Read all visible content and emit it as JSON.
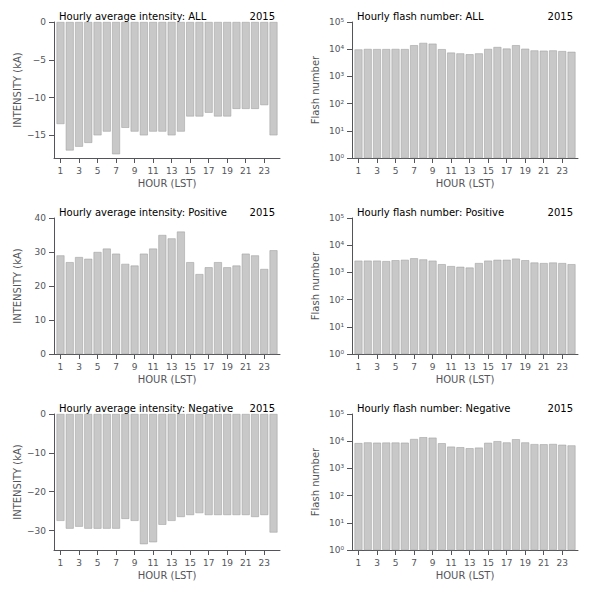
{
  "chart_data": [
    {
      "type": "bar",
      "title": "Hourly average intensity: ALL",
      "annotation": "2015",
      "xlabel": "HOUR (LST)",
      "ylabel": "INTENSITY (kA)",
      "x": [
        1,
        2,
        3,
        4,
        5,
        6,
        7,
        8,
        9,
        10,
        11,
        12,
        13,
        14,
        15,
        16,
        17,
        18,
        19,
        20,
        21,
        22,
        23,
        24
      ],
      "values": [
        -13.5,
        -17.0,
        -16.5,
        -16.0,
        -15.0,
        -14.5,
        -17.5,
        -14.0,
        -14.5,
        -15.0,
        -14.5,
        -14.5,
        -15.0,
        -14.5,
        -12.5,
        -12.5,
        -12.0,
        -12.5,
        -12.5,
        -11.5,
        -11.5,
        -11.5,
        -11.0,
        -15.0
      ],
      "color": "#c8c8c8",
      "xlim": [
        0.3,
        24.7
      ],
      "xticks": [
        1,
        3,
        5,
        7,
        9,
        11,
        13,
        15,
        17,
        19,
        21,
        23
      ],
      "ylim": [
        -18,
        0
      ],
      "yticks": [
        0,
        {
          "value": -5,
          "label": "−5"
        },
        {
          "value": -10,
          "label": "−10"
        },
        {
          "value": -15,
          "label": "−15"
        }
      ],
      "grid": false
    },
    {
      "type": "bar",
      "title": "Hourly flash number: ALL",
      "annotation": "2015",
      "xlabel": "HOUR (LST)",
      "ylabel": "Flash number",
      "x": [
        1,
        2,
        3,
        4,
        5,
        6,
        7,
        8,
        9,
        10,
        11,
        12,
        13,
        14,
        15,
        16,
        17,
        18,
        19,
        20,
        21,
        22,
        23,
        24
      ],
      "values": [
        9800,
        10200,
        10100,
        10100,
        10200,
        10100,
        14000,
        17000,
        16000,
        10000,
        7500,
        7000,
        6500,
        7000,
        10200,
        12000,
        10500,
        14000,
        10400,
        9000,
        8800,
        9000,
        8500,
        8000
      ],
      "color": "#c8c8c8",
      "xlim": [
        0.3,
        24.7
      ],
      "xticks": [
        1,
        3,
        5,
        7,
        9,
        11,
        13,
        15,
        17,
        19,
        21,
        23
      ],
      "ylim": [
        1,
        100000
      ],
      "yticks": [
        {
          "value": 1,
          "label": "10⁰"
        },
        {
          "value": 10,
          "label": "10¹"
        },
        {
          "value": 100,
          "label": "10²"
        },
        {
          "value": 1000,
          "label": "10³"
        },
        {
          "value": 10000,
          "label": "10⁴"
        },
        {
          "value": 100000,
          "label": "10⁵"
        }
      ],
      "log": "y",
      "grid": false
    },
    {
      "type": "bar",
      "title": "Hourly average intensity: Positive",
      "annotation": "2015",
      "xlabel": "HOUR (LST)",
      "ylabel": "INTENSITY (kA)",
      "x": [
        1,
        2,
        3,
        4,
        5,
        6,
        7,
        8,
        9,
        10,
        11,
        12,
        13,
        14,
        15,
        16,
        17,
        18,
        19,
        20,
        21,
        22,
        23,
        24
      ],
      "values": [
        29.0,
        27.0,
        28.5,
        28.0,
        30.0,
        31.0,
        29.5,
        26.5,
        26.0,
        29.5,
        31.0,
        35.0,
        34.0,
        36.0,
        27.0,
        23.5,
        25.5,
        27.0,
        25.5,
        26.0,
        29.5,
        29.0,
        25.0,
        30.5
      ],
      "color": "#c8c8c8",
      "xlim": [
        0.3,
        24.7
      ],
      "xticks": [
        1,
        3,
        5,
        7,
        9,
        11,
        13,
        15,
        17,
        19,
        21,
        23
      ],
      "ylim": [
        0,
        40
      ],
      "yticks": [
        0,
        10,
        20,
        30,
        40
      ],
      "grid": false
    },
    {
      "type": "bar",
      "title": "Hourly flash number: Positive",
      "annotation": "2015",
      "xlabel": "HOUR (LST)",
      "ylabel": "Flash number",
      "x": [
        1,
        2,
        3,
        4,
        5,
        6,
        7,
        8,
        9,
        10,
        11,
        12,
        13,
        14,
        15,
        16,
        17,
        18,
        19,
        20,
        21,
        22,
        23,
        24
      ],
      "values": [
        2700,
        2700,
        2700,
        2600,
        2800,
        2900,
        3300,
        3000,
        2700,
        2000,
        1700,
        1600,
        1500,
        2200,
        2700,
        2900,
        2900,
        3200,
        2800,
        2300,
        2200,
        2300,
        2200,
        2000
      ],
      "color": "#c8c8c8",
      "xlim": [
        0.3,
        24.7
      ],
      "xticks": [
        1,
        3,
        5,
        7,
        9,
        11,
        13,
        15,
        17,
        19,
        21,
        23
      ],
      "ylim": [
        1,
        100000
      ],
      "yticks": [
        {
          "value": 1,
          "label": "10⁰"
        },
        {
          "value": 10,
          "label": "10¹"
        },
        {
          "value": 100,
          "label": "10²"
        },
        {
          "value": 1000,
          "label": "10³"
        },
        {
          "value": 10000,
          "label": "10⁴"
        },
        {
          "value": 100000,
          "label": "10⁵"
        }
      ],
      "log": "y",
      "grid": false
    },
    {
      "type": "bar",
      "title": "Hourly average intensity: Negative",
      "annotation": "2015",
      "xlabel": "HOUR (LST)",
      "ylabel": "INTENSITY (kA)",
      "x": [
        1,
        2,
        3,
        4,
        5,
        6,
        7,
        8,
        9,
        10,
        11,
        12,
        13,
        14,
        15,
        16,
        17,
        18,
        19,
        20,
        21,
        22,
        23,
        24
      ],
      "values": [
        -27.5,
        -29.5,
        -29.0,
        -29.5,
        -29.5,
        -29.5,
        -29.5,
        -27.0,
        -27.5,
        -33.5,
        -33.0,
        -28.5,
        -27.5,
        -26.5,
        -26.0,
        -25.5,
        -26.0,
        -26.0,
        -26.0,
        -26.0,
        -26.0,
        -26.5,
        -26.0,
        -30.5
      ],
      "color": "#c8c8c8",
      "xlim": [
        0.3,
        24.7
      ],
      "xticks": [
        1,
        3,
        5,
        7,
        9,
        11,
        13,
        15,
        17,
        19,
        21,
        23
      ],
      "ylim": [
        -35,
        0
      ],
      "yticks": [
        0,
        {
          "value": -10,
          "label": "−10"
        },
        {
          "value": -20,
          "label": "−20"
        },
        {
          "value": -30,
          "label": "−30"
        }
      ],
      "grid": false
    },
    {
      "type": "bar",
      "title": "Hourly flash number: Negative",
      "annotation": "2015",
      "xlabel": "HOUR (LST)",
      "ylabel": "Flash number",
      "x": [
        1,
        2,
        3,
        4,
        5,
        6,
        7,
        8,
        9,
        10,
        11,
        12,
        13,
        14,
        15,
        16,
        17,
        18,
        19,
        20,
        21,
        22,
        23,
        24
      ],
      "values": [
        8500,
        9000,
        8800,
        8900,
        8900,
        8800,
        12000,
        14000,
        13500,
        8400,
        6300,
        6000,
        5500,
        5800,
        8700,
        10000,
        9000,
        11800,
        9000,
        7800,
        7700,
        7900,
        7400,
        7000
      ],
      "color": "#c8c8c8",
      "xlim": [
        0.3,
        24.7
      ],
      "xticks": [
        1,
        3,
        5,
        7,
        9,
        11,
        13,
        15,
        17,
        19,
        21,
        23
      ],
      "ylim": [
        1,
        100000
      ],
      "yticks": [
        {
          "value": 1,
          "label": "10⁰"
        },
        {
          "value": 10,
          "label": "10¹"
        },
        {
          "value": 100,
          "label": "10²"
        },
        {
          "value": 1000,
          "label": "10³"
        },
        {
          "value": 10000,
          "label": "10⁴"
        },
        {
          "value": 100000,
          "label": "10⁵"
        }
      ],
      "log": "y",
      "grid": false
    }
  ]
}
